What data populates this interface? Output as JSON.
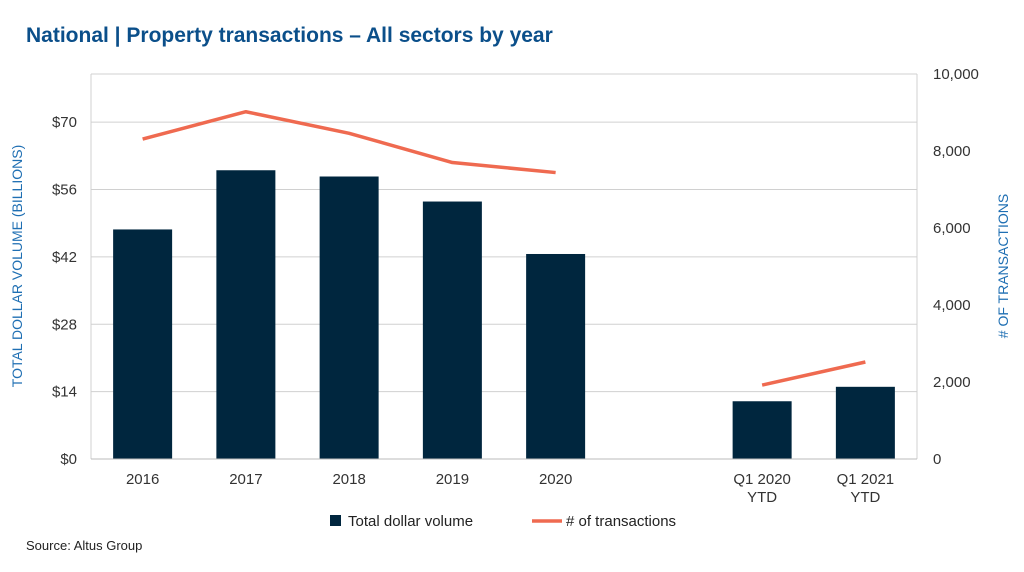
{
  "title": "National | Property transactions – All sectors by year",
  "source": "Source:  Altus Group",
  "colors": {
    "bar": "#00263e",
    "line": "#ef6a50",
    "title": "#0b4f8a",
    "axis_label": "#1f6fb3",
    "grid": "#d0d0d0"
  },
  "chart_data": {
    "type": "bar+line",
    "categories": [
      [
        "2016"
      ],
      [
        "2017"
      ],
      [
        "2018"
      ],
      [
        "2019"
      ],
      [
        "2020"
      ],
      [
        ""
      ],
      [
        "Q1 2020",
        "YTD"
      ],
      [
        "Q1 2021",
        "YTD"
      ]
    ],
    "series": [
      {
        "name": "Total dollar volume",
        "type": "bar",
        "axis": "left",
        "values": [
          47.7,
          60.0,
          58.7,
          53.5,
          42.6,
          null,
          12.0,
          15.0
        ]
      },
      {
        "name": "# of transactions",
        "type": "line",
        "axis": "right",
        "values": [
          8310,
          9020,
          8460,
          7700,
          7440,
          null,
          1920,
          2520
        ]
      }
    ],
    "ylabel": "TOTAL DOLLAR VOLUME (BILLIONS)",
    "y2label": "# OF TRANSACTIONS",
    "ylim": [
      0,
      80
    ],
    "y2lim": [
      0,
      10000
    ],
    "yticks": [
      "$0",
      "$14",
      "$28",
      "$42",
      "$56",
      "$70"
    ],
    "ytick_values": [
      0,
      14,
      28,
      42,
      56,
      70
    ],
    "y2ticks": [
      "0",
      "2,000",
      "4,000",
      "6,000",
      "8,000",
      "10,000"
    ],
    "y2tick_values": [
      0,
      2000,
      4000,
      6000,
      8000,
      10000
    ],
    "grid": true,
    "legend": "bottom"
  }
}
